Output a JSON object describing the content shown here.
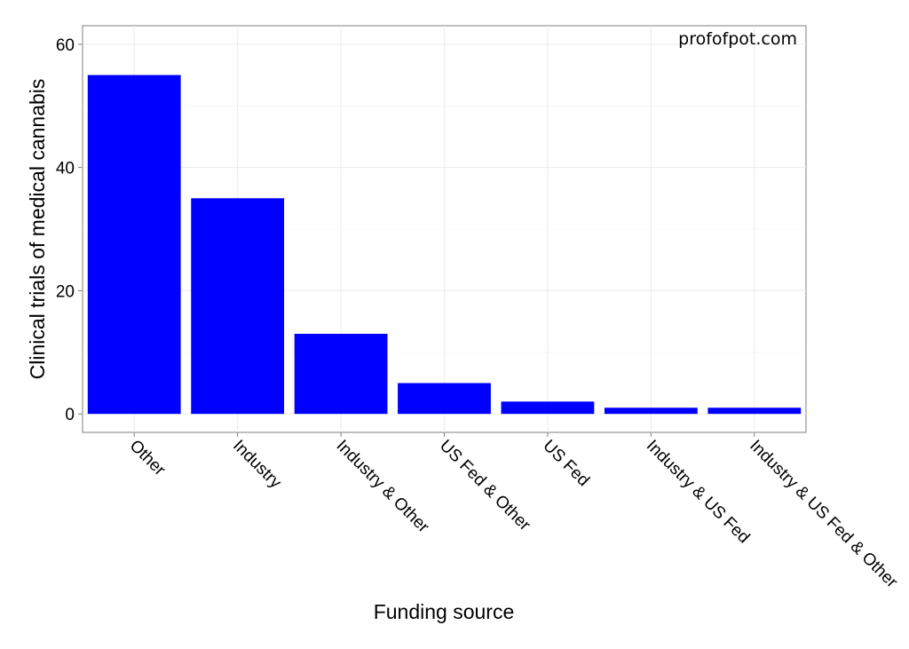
{
  "chart_data": {
    "type": "bar",
    "categories": [
      "Other",
      "Industry",
      "Industry & Other",
      "US Fed & Other",
      "US Fed",
      "Industry & US Fed",
      "Industry & US Fed & Other"
    ],
    "values": [
      55,
      35,
      13,
      5,
      2,
      1,
      1
    ],
    "xlabel": "Funding source",
    "ylabel": "Clinical trials of medical cannabis",
    "ylim": [
      -3,
      63
    ],
    "yticks": [
      0,
      20,
      40,
      60
    ],
    "grid": true,
    "bar_color": "#0000ff",
    "annotation": "profofpot.com"
  }
}
